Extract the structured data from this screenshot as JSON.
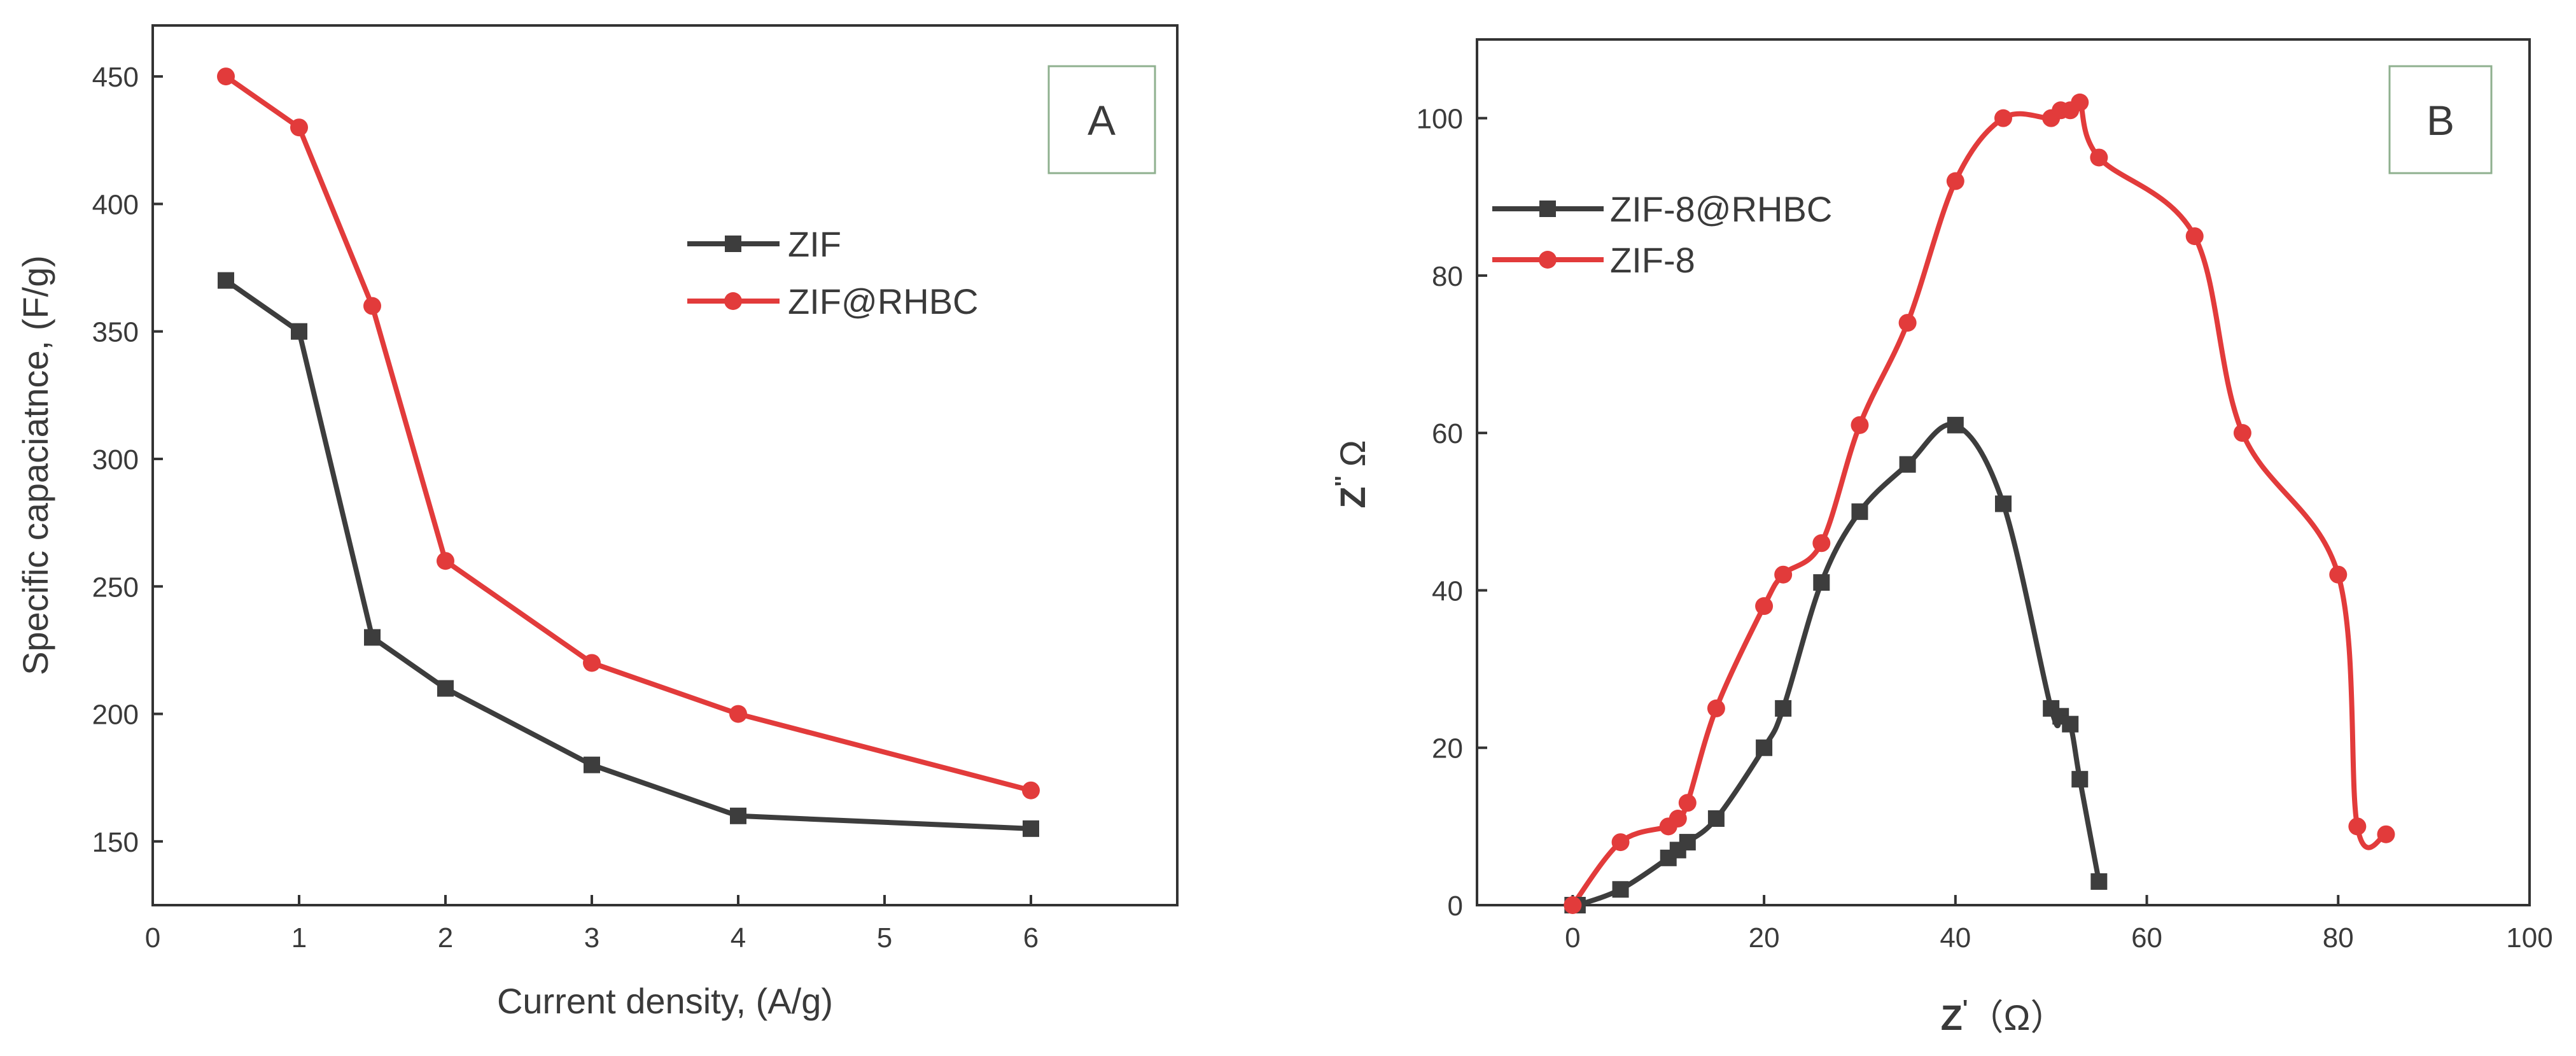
{
  "colors": {
    "series_dark": "#3d3d3d",
    "series_red": "#e23b3b",
    "box_border": "#8fb08f",
    "axis": "#333333"
  },
  "chart_data": [
    {
      "panel": "A",
      "type": "line",
      "xlabel": "Current density, (A/g)",
      "ylabel": "Specific capaciatnce, (F/g)",
      "xlim": [
        0,
        7
      ],
      "ylim": [
        125,
        470
      ],
      "xticks": [
        0,
        1,
        2,
        3,
        4,
        5,
        6
      ],
      "yticks": [
        150,
        200,
        250,
        300,
        350,
        400,
        450
      ],
      "legend_position": "upper-right",
      "series": [
        {
          "name": "ZIF",
          "marker": "square",
          "color": "#3d3d3d",
          "x": [
            0.5,
            1,
            1.5,
            2,
            3,
            4,
            6
          ],
          "y": [
            370,
            350,
            230,
            210,
            180,
            160,
            155
          ]
        },
        {
          "name": "ZIF@RHBC",
          "marker": "circle",
          "color": "#e23b3b",
          "x": [
            0.5,
            1,
            1.5,
            2,
            3,
            4,
            6
          ],
          "y": [
            450,
            430,
            360,
            260,
            220,
            200,
            170
          ]
        }
      ]
    },
    {
      "panel": "B",
      "type": "scatter",
      "xlabel_main": "Z",
      "xlabel_prime": "'",
      "xlabel_unit": "（Ω）",
      "ylabel_main": "Z",
      "ylabel_prime": "''",
      "ylabel_unit": "Ω",
      "xlim": [
        -10,
        100
      ],
      "ylim": [
        0,
        110
      ],
      "xticks": [
        0,
        20,
        40,
        60,
        80,
        100
      ],
      "yticks": [
        0,
        20,
        40,
        60,
        80,
        100
      ],
      "legend_position": "upper-left",
      "series": [
        {
          "name": "ZIF-8@RHBC",
          "marker": "square",
          "color": "#3d3d3d",
          "x": [
            0,
            0.5,
            5,
            10,
            11,
            12,
            15,
            20,
            22,
            26,
            30,
            35,
            40,
            45,
            50,
            51,
            52,
            53,
            55
          ],
          "y": [
            0,
            0,
            2,
            6,
            7,
            8,
            11,
            20,
            25,
            41,
            50,
            56,
            61,
            51,
            25,
            24,
            23,
            16,
            3
          ]
        },
        {
          "name": "ZIF-8",
          "marker": "circle",
          "color": "#e23b3b",
          "x": [
            0,
            5,
            10,
            11,
            12,
            15,
            20,
            22,
            26,
            30,
            35,
            40,
            45,
            50,
            51,
            52,
            53,
            55,
            65,
            70,
            80,
            82,
            85
          ],
          "y": [
            0,
            8,
            10,
            11,
            13,
            25,
            38,
            42,
            46,
            61,
            74,
            92,
            100,
            100,
            101,
            101,
            102,
            95,
            85,
            60,
            42,
            10,
            9
          ]
        }
      ]
    }
  ]
}
